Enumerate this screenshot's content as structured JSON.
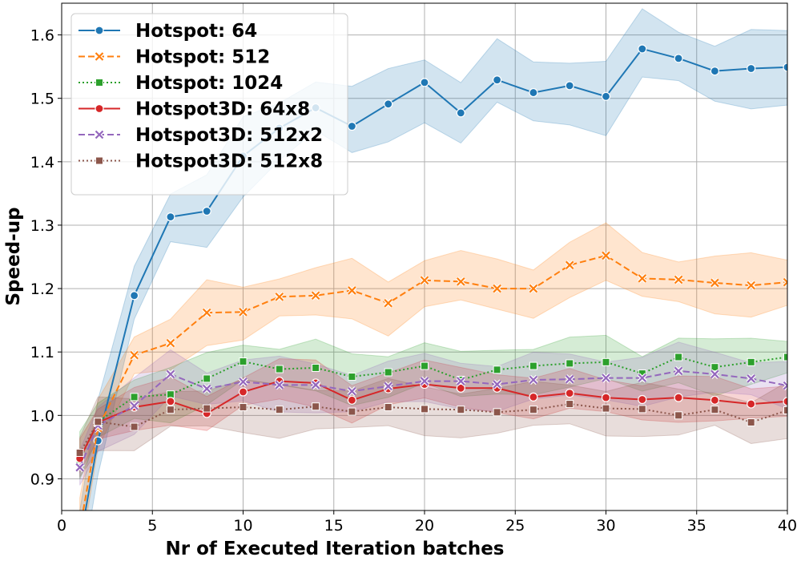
{
  "chart_data": {
    "type": "line",
    "title": "",
    "xlabel": "Nr of Executed Iteration batches",
    "ylabel": "Speed-up",
    "xlim": [
      0,
      40
    ],
    "ylim": [
      0.85,
      1.65
    ],
    "xticks": [
      "0",
      "5",
      "10",
      "15",
      "20",
      "25",
      "30",
      "35",
      "40"
    ],
    "yticks": [
      "0.9",
      "1.0",
      "1.1",
      "1.2",
      "1.3",
      "1.4",
      "1.5",
      "1.6"
    ],
    "grid": true,
    "legend_position": "top-left",
    "x": [
      1,
      2,
      4,
      6,
      8,
      10,
      12,
      14,
      16,
      18,
      20,
      22,
      24,
      26,
      28,
      30,
      32,
      34,
      36,
      38,
      40
    ],
    "series": [
      {
        "name": "Hotspot: 64",
        "color": "#1f77b4",
        "marker": "circle",
        "linestyle": "solid",
        "ci": 0.05,
        "values": [
          0.8,
          0.96,
          1.189,
          1.313,
          1.322,
          1.409,
          1.453,
          1.485,
          1.456,
          1.491,
          1.525,
          1.477,
          1.529,
          1.509,
          1.52,
          1.503,
          1.578,
          1.563,
          1.543,
          1.547,
          1.549
        ]
      },
      {
        "name": "Hotspot: 512",
        "color": "#ff7f0e",
        "marker": "x",
        "linestyle": "dashed",
        "ci": 0.04,
        "values": [
          0.82,
          0.98,
          1.095,
          1.114,
          1.162,
          1.163,
          1.187,
          1.189,
          1.197,
          1.177,
          1.213,
          1.211,
          1.2,
          1.2,
          1.237,
          1.252,
          1.216,
          1.214,
          1.209,
          1.205,
          1.21
        ]
      },
      {
        "name": "Hotspot: 1024",
        "color": "#2ca02c",
        "marker": "square",
        "linestyle": "dotted",
        "ci": 0.035,
        "values": [
          0.93,
          0.99,
          1.029,
          1.033,
          1.058,
          1.085,
          1.073,
          1.075,
          1.061,
          1.068,
          1.078,
          1.056,
          1.072,
          1.078,
          1.082,
          1.084,
          1.066,
          1.092,
          1.076,
          1.084,
          1.092
        ]
      },
      {
        "name": "Hotspot3D: 64x8",
        "color": "#d62728",
        "marker": "circle",
        "linestyle": "solid",
        "ci": 0.03,
        "values": [
          0.932,
          0.989,
          1.013,
          1.022,
          1.003,
          1.037,
          1.054,
          1.051,
          1.024,
          1.042,
          1.049,
          1.043,
          1.043,
          1.029,
          1.035,
          1.028,
          1.025,
          1.028,
          1.024,
          1.018,
          1.022
        ]
      },
      {
        "name": "Hotspot3D: 512x2",
        "color": "#9467bd",
        "marker": "x",
        "linestyle": "dashed",
        "ci": 0.035,
        "values": [
          0.918,
          0.984,
          1.015,
          1.065,
          1.042,
          1.053,
          1.048,
          1.048,
          1.038,
          1.046,
          1.054,
          1.054,
          1.049,
          1.056,
          1.057,
          1.059,
          1.059,
          1.07,
          1.065,
          1.058,
          1.047
        ]
      },
      {
        "name": "Hotspot3D: 512x8",
        "color": "#8c564b",
        "marker": "square",
        "linestyle": "dotted",
        "ci": 0.035,
        "values": [
          0.941,
          0.99,
          0.982,
          1.009,
          1.011,
          1.013,
          1.009,
          1.014,
          1.006,
          1.013,
          1.01,
          1.009,
          1.005,
          1.009,
          1.018,
          1.011,
          1.01,
          1.0,
          1.009,
          0.989,
          1.008
        ]
      }
    ]
  }
}
